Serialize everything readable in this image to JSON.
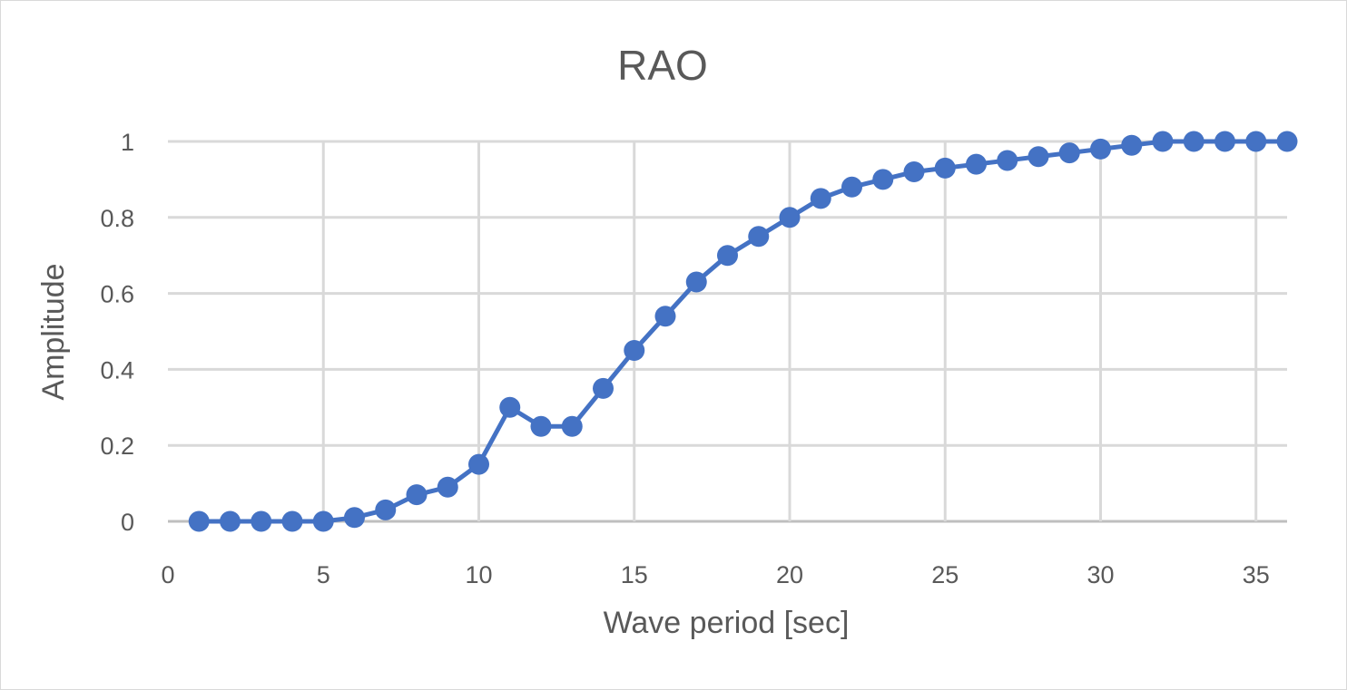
{
  "chart_data": {
    "type": "line",
    "title": "RAO",
    "xlabel": "Wave period [sec]",
    "ylabel": "Amplitude",
    "xlim": [
      0,
      36
    ],
    "ylim": [
      0,
      1
    ],
    "xticks": [
      0,
      5,
      10,
      15,
      20,
      25,
      30,
      35
    ],
    "yticks": [
      0,
      0.2,
      0.4,
      0.6,
      0.8,
      1
    ],
    "ytick_labels": [
      "0",
      "0.2",
      "0.4",
      "0.6",
      "0.8",
      "1"
    ],
    "grid": true,
    "legend": "none",
    "series": [
      {
        "name": "RAO",
        "color": "#4472c4",
        "x": [
          1,
          2,
          3,
          4,
          5,
          6,
          7,
          8,
          9,
          10,
          11,
          12,
          13,
          14,
          15,
          16,
          17,
          18,
          19,
          20,
          21,
          22,
          23,
          24,
          25,
          26,
          27,
          28,
          29,
          30,
          31,
          32,
          33,
          34,
          35,
          36
        ],
        "values": [
          0,
          0,
          0,
          0,
          0,
          0.01,
          0.03,
          0.07,
          0.09,
          0.15,
          0.3,
          0.25,
          0.25,
          0.35,
          0.45,
          0.54,
          0.63,
          0.7,
          0.75,
          0.8,
          0.85,
          0.88,
          0.9,
          0.92,
          0.93,
          0.94,
          0.95,
          0.96,
          0.97,
          0.98,
          0.99,
          1,
          1,
          1,
          1,
          1
        ]
      }
    ]
  }
}
